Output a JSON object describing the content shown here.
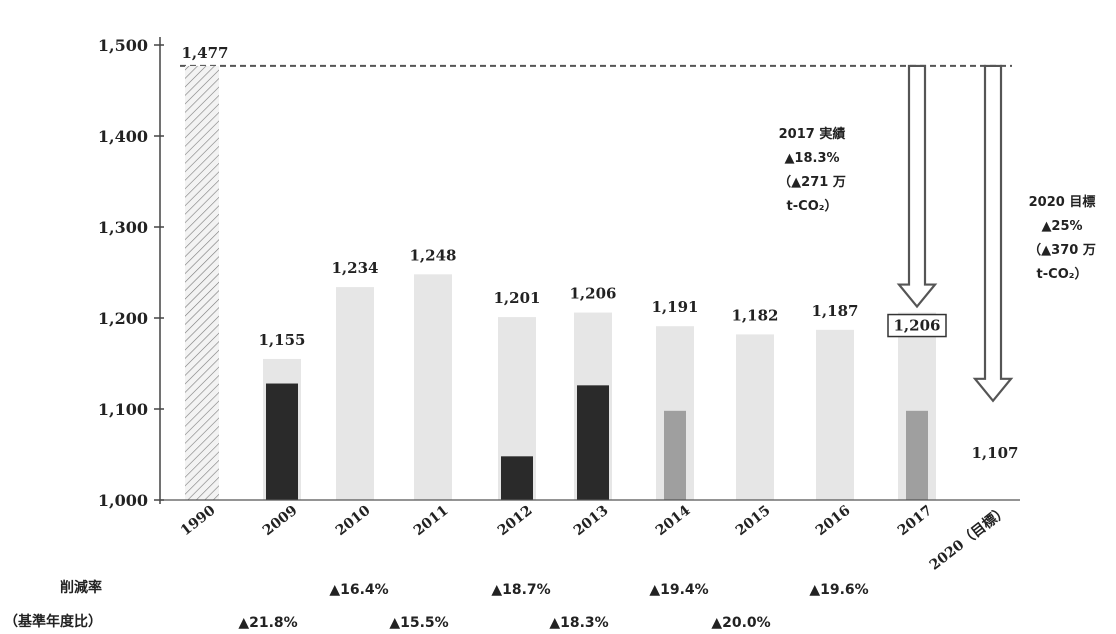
{
  "chart_data": {
    "type": "bar",
    "title": "",
    "xlabel": "",
    "ylabel": "",
    "ylim": [
      1000,
      1500
    ],
    "yticks": [
      "1,000",
      "1,100",
      "1,200",
      "1,300",
      "1,400",
      "1,500"
    ],
    "categories": [
      "1990",
      "2009",
      "2010",
      "2011",
      "2012",
      "2013",
      "2014",
      "2015",
      "2016",
      "2017",
      "2020（目標）"
    ],
    "values": [
      1477,
      1155,
      1234,
      1248,
      1201,
      1206,
      1191,
      1182,
      1187,
      1206,
      1107
    ],
    "value_labels": [
      "1,477",
      "1,155",
      "1,234",
      "1,248",
      "1,201",
      "1,206",
      "1,191",
      "1,182",
      "1,187",
      "1,206",
      "1,107"
    ],
    "dark_fill_values": [
      null,
      1128,
      null,
      null,
      1048,
      1126,
      1098,
      null,
      null,
      1098,
      null
    ],
    "annotations": [
      {
        "target": "2017",
        "lines": [
          "2017 実績",
          "▲18.3%",
          "（▲271 万",
          "t-CO₂）"
        ]
      },
      {
        "target": "2020（目標）",
        "lines": [
          "2020 目標",
          "▲25%",
          "（▲370 万",
          "t-CO₂）"
        ]
      }
    ],
    "reduction_row": {
      "label1": "削減率",
      "label2": "（基準年度比）",
      "top": [
        {
          "category": "2010",
          "text": "▲16.4%"
        },
        {
          "category": "2012",
          "text": "▲18.7%"
        },
        {
          "category": "2014",
          "text": "▲19.4%"
        },
        {
          "category": "2016",
          "text": "▲19.6%"
        }
      ],
      "bottom": [
        {
          "category": "2009",
          "text": "▲21.8%"
        },
        {
          "category": "2011",
          "text": "▲15.5%"
        },
        {
          "category": "2013",
          "text": "▲18.3%"
        },
        {
          "category": "2015",
          "text": "▲20.0%"
        }
      ]
    },
    "colors": {
      "light_bar": "#e2e2e2",
      "dark_fill": "#1a1a1a",
      "baseline_bar": "#d8d8d8",
      "arrow": "#555555",
      "text": "#222222"
    }
  }
}
